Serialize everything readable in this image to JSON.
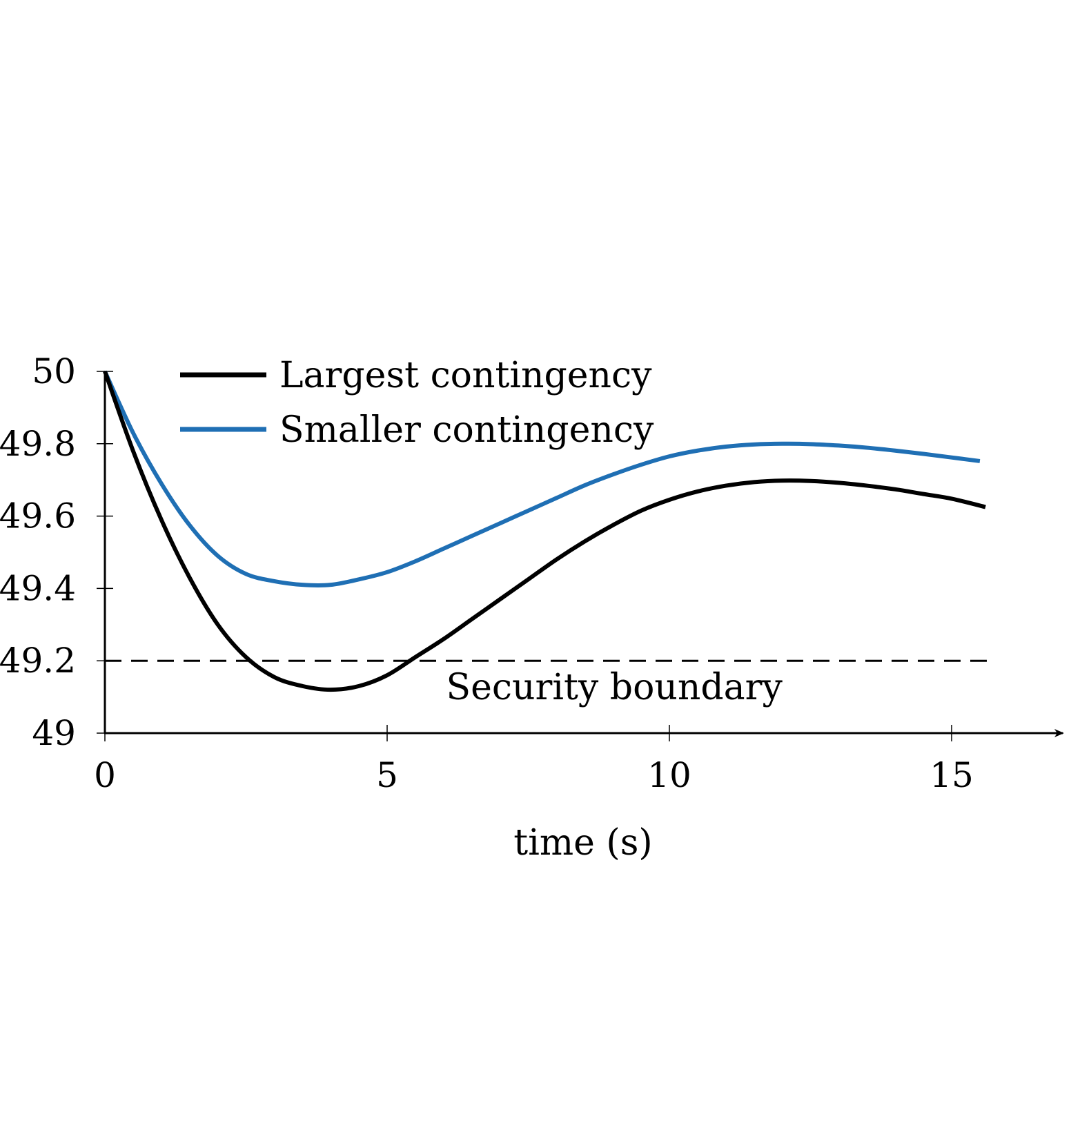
{
  "chart_data": {
    "type": "line",
    "title": "",
    "xlabel": "time (s)",
    "ylabel": "",
    "xlim": [
      0,
      17
    ],
    "ylim": [
      49,
      50
    ],
    "x_ticks": [
      0,
      5,
      10,
      15
    ],
    "x_tick_labels": [
      "0",
      "5",
      "10",
      "15"
    ],
    "y_ticks": [
      49,
      49.2,
      49.4,
      49.6,
      49.8,
      50
    ],
    "y_tick_labels": [
      "49",
      "49.2",
      "49.4",
      "49.6",
      "49.8",
      "50"
    ],
    "grid": false,
    "legend_position": "top-left",
    "series": [
      {
        "name": "Largest contingency",
        "color": "#000000",
        "x": [
          0,
          0.5,
          1,
          1.5,
          2,
          2.5,
          3,
          3.5,
          4,
          4.5,
          5,
          5.5,
          6,
          6.5,
          7,
          7.5,
          8,
          8.5,
          9,
          9.5,
          10,
          10.5,
          11,
          11.5,
          12,
          12.5,
          13,
          13.5,
          14,
          14.5,
          15,
          15.6
        ],
        "y": [
          50,
          49.78,
          49.59,
          49.43,
          49.3,
          49.21,
          49.155,
          49.13,
          49.12,
          49.13,
          49.16,
          49.21,
          49.26,
          49.315,
          49.37,
          49.425,
          49.48,
          49.53,
          49.575,
          49.615,
          49.645,
          49.668,
          49.684,
          49.694,
          49.698,
          49.697,
          49.692,
          49.684,
          49.674,
          49.661,
          49.648,
          49.625
        ]
      },
      {
        "name": "Smaller contingency",
        "color": "#1f6fb4",
        "x": [
          0,
          0.5,
          1,
          1.5,
          2,
          2.5,
          3,
          3.5,
          4,
          4.5,
          5,
          5.5,
          6,
          6.5,
          7,
          7.5,
          8,
          8.5,
          9,
          9.5,
          10,
          10.5,
          11,
          11.5,
          12,
          12.5,
          13,
          13.5,
          14,
          14.5,
          15,
          15.5
        ],
        "y": [
          50,
          49.83,
          49.69,
          49.575,
          49.49,
          49.44,
          49.42,
          49.41,
          49.41,
          49.425,
          49.445,
          49.475,
          49.51,
          49.545,
          49.58,
          49.615,
          49.65,
          49.685,
          49.715,
          49.742,
          49.765,
          49.781,
          49.792,
          49.798,
          49.8,
          49.799,
          49.795,
          49.789,
          49.781,
          49.772,
          49.762,
          49.752
        ]
      }
    ],
    "reference_lines": [
      {
        "y": 49.2,
        "x_range": [
          0,
          15.7
        ],
        "style": "dashed",
        "color": "#000000",
        "label": "Security boundary",
        "label_x": 9
      }
    ]
  }
}
